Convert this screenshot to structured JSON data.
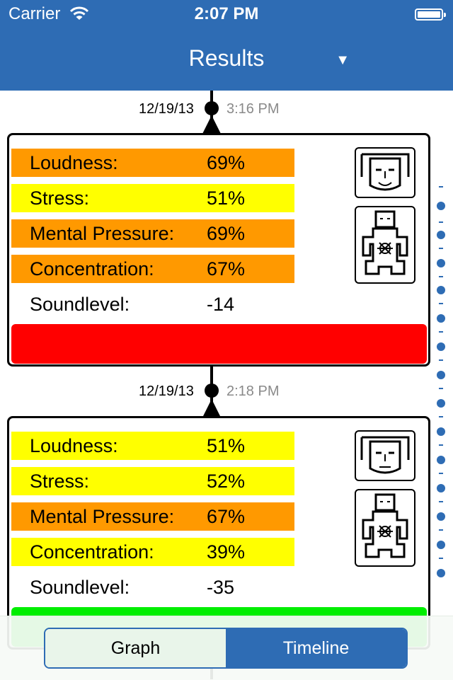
{
  "status_bar": {
    "carrier": "Carrier",
    "time": "2:07 PM"
  },
  "nav": {
    "title": "Results",
    "dropdown_icon": "triangle-down"
  },
  "entries": [
    {
      "date": "12/19/13",
      "time": "3:16 PM",
      "rows": [
        {
          "label": "Loudness:",
          "value": "69%",
          "level": "orange"
        },
        {
          "label": "Stress:",
          "value": "51%",
          "level": "yellow"
        },
        {
          "label": "Mental Pressure:",
          "value": "69%",
          "level": "orange"
        },
        {
          "label": "Concentration:",
          "value": "67%",
          "level": "orange"
        },
        {
          "label": "Soundlevel:",
          "value": "-14",
          "level": "none"
        }
      ],
      "face": "smiling-face",
      "summary_color": "#ff0000"
    },
    {
      "date": "12/19/13",
      "time": "2:18 PM",
      "rows": [
        {
          "label": "Loudness:",
          "value": "51%",
          "level": "yellow"
        },
        {
          "label": "Stress:",
          "value": "52%",
          "level": "yellow"
        },
        {
          "label": "Mental Pressure:",
          "value": "67%",
          "level": "orange"
        },
        {
          "label": "Concentration:",
          "value": "39%",
          "level": "yellow"
        },
        {
          "label": "Soundlevel:",
          "value": "-35",
          "level": "none"
        }
      ],
      "face": "neutral-face",
      "summary_color": "#00ee00"
    }
  ],
  "colors": {
    "accent": "#2e6cb4",
    "orange": "#ff9900",
    "yellow": "#ffff00"
  },
  "segmented": {
    "graph_label": "Graph",
    "timeline_label": "Timeline",
    "selected": "Timeline"
  }
}
